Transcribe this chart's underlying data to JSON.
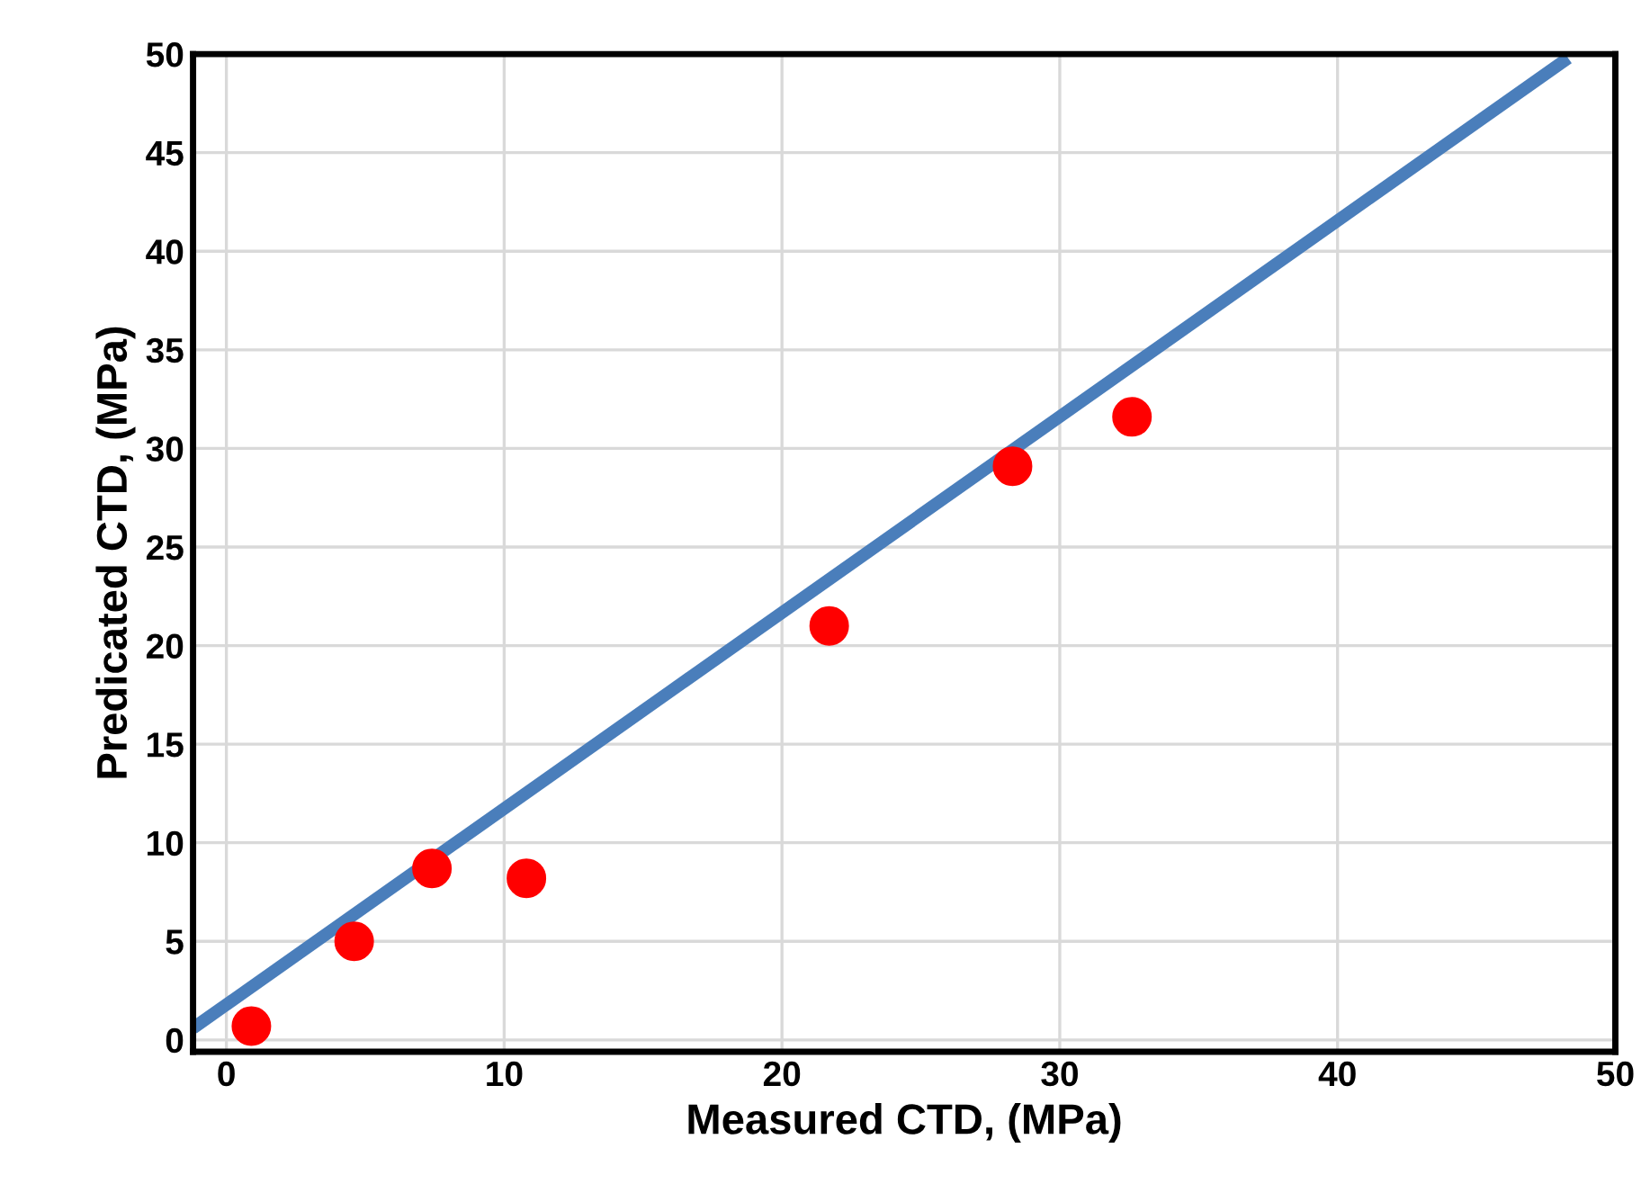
{
  "chart_data": {
    "type": "scatter",
    "xlabel": "Measured CTD, (MPa)",
    "ylabel": "Predicated CTD, (MPa)",
    "xlim": [
      -1.2,
      50
    ],
    "ylim": [
      -0.6,
      50
    ],
    "xticks": [
      0,
      10,
      20,
      30,
      40,
      50
    ],
    "yticks": [
      0,
      5,
      10,
      15,
      20,
      25,
      30,
      35,
      40,
      45,
      50
    ],
    "grid": true,
    "series": [
      {
        "type": "line",
        "color": "#4a7ebb",
        "x": [
          -1.2,
          48.3
        ],
        "values": [
          0.6,
          49.8
        ],
        "line_style": "solid"
      },
      {
        "color": "#ff0000",
        "marker": "circle",
        "x": [
          0.9,
          4.6,
          7.4,
          10.8,
          21.7,
          28.3,
          32.6
        ],
        "values": [
          0.7,
          5.0,
          8.7,
          8.2,
          21.0,
          29.1,
          31.6
        ]
      }
    ]
  }
}
